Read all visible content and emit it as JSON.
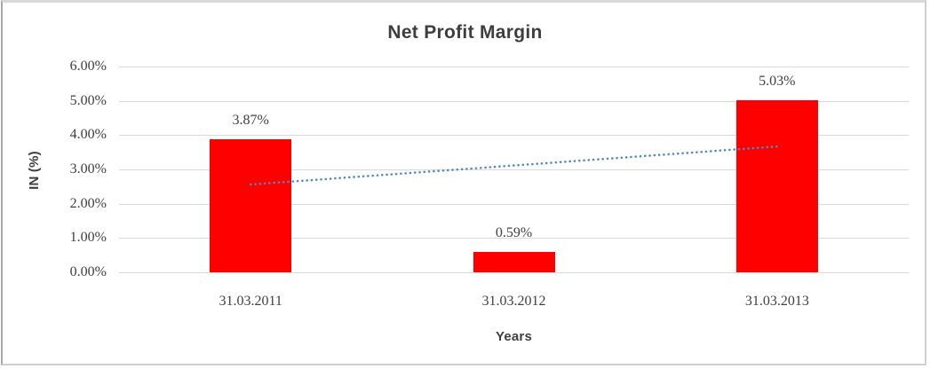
{
  "chart_data": {
    "type": "bar",
    "title": "Net Profit Margin",
    "xlabel": "Years",
    "ylabel": "IN (%)",
    "categories": [
      "31.03.2011",
      "31.03.2012",
      "31.03.2013"
    ],
    "values": [
      3.87,
      0.59,
      5.03
    ],
    "data_labels": [
      "3.87%",
      "0.59%",
      "5.03%"
    ],
    "ylim": [
      0,
      6
    ],
    "ytick_step": 1,
    "ytick_labels": [
      "0.00%",
      "1.00%",
      "2.00%",
      "3.00%",
      "4.00%",
      "5.00%",
      "6.00%"
    ],
    "grid": true,
    "legend": "none",
    "bar_color": "#FF0000",
    "gridline_color": "#D9D9D9",
    "text_color": "#404040",
    "trendline": {
      "type": "linear",
      "style": "dotted",
      "color": "#5089C9",
      "start_value": 2.56,
      "end_value": 3.67
    }
  }
}
